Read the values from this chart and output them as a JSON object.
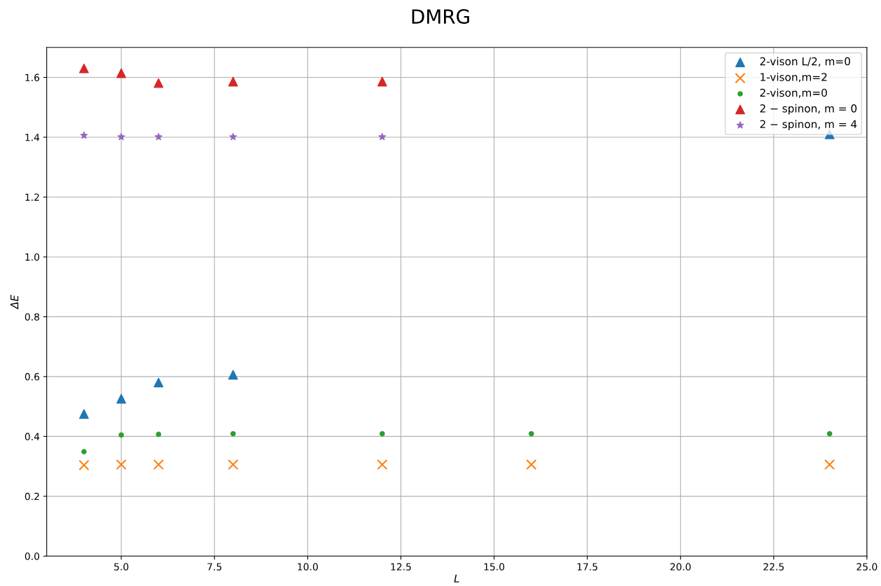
{
  "chart_data": {
    "type": "scatter",
    "title": "DMRG",
    "xlabel": "L",
    "ylabel": "ΔE",
    "xlim": [
      3.0,
      25.0
    ],
    "ylim": [
      0.0,
      1.7
    ],
    "xticks": [
      {
        "value": 5,
        "label": "5.0"
      },
      {
        "value": 7.5,
        "label": "7.5"
      },
      {
        "value": 10,
        "label": "10.0"
      },
      {
        "value": 12.5,
        "label": "12.5"
      },
      {
        "value": 15,
        "label": "15.0"
      },
      {
        "value": 17.5,
        "label": "17.5"
      },
      {
        "value": 20,
        "label": "20.0"
      },
      {
        "value": 22.5,
        "label": "22.5"
      },
      {
        "value": 25,
        "label": "25.0"
      }
    ],
    "yticks": [
      {
        "value": 0,
        "label": "0.0"
      },
      {
        "value": 0.2,
        "label": "0.2"
      },
      {
        "value": 0.4,
        "label": "0.4"
      },
      {
        "value": 0.6,
        "label": "0.6"
      },
      {
        "value": 0.8,
        "label": "0.8"
      },
      {
        "value": 1.0,
        "label": "1.0"
      },
      {
        "value": 1.2,
        "label": "1.2"
      },
      {
        "value": 1.4,
        "label": "1.4"
      },
      {
        "value": 1.6,
        "label": "1.6"
      }
    ],
    "grid": true,
    "legend": "top right",
    "series": [
      {
        "name": "2-vison L/2, m=0",
        "color": "#1f77b4",
        "marker": "triangle",
        "x": [
          4,
          5,
          6,
          8,
          24
        ],
        "values": [
          0.475,
          0.526,
          0.58,
          0.606,
          1.41
        ]
      },
      {
        "name": "1-vison,m=2",
        "color": "#ff7f0e",
        "marker": "cross",
        "x": [
          4,
          5,
          6,
          8,
          12,
          16,
          24
        ],
        "values": [
          0.304,
          0.306,
          0.306,
          0.306,
          0.306,
          0.306,
          0.306
        ]
      },
      {
        "name": "2-vison,m=0",
        "color": "#2ca02c",
        "marker": "circle",
        "x": [
          4,
          5,
          6,
          8,
          12,
          16,
          24
        ],
        "values": [
          0.349,
          0.405,
          0.407,
          0.409,
          0.409,
          0.409,
          0.409
        ]
      },
      {
        "name": "2 − spinon, m = 0",
        "color": "#d62728",
        "marker": "triangle",
        "x": [
          4,
          5,
          6,
          8,
          12
        ],
        "values": [
          1.63,
          1.614,
          1.581,
          1.586,
          1.586
        ]
      },
      {
        "name": "2 − spinon, m = 4",
        "color": "#9467bd",
        "marker": "star",
        "x": [
          4,
          5,
          6,
          8,
          12
        ],
        "values": [
          1.406,
          1.401,
          1.401,
          1.401,
          1.401
        ]
      }
    ]
  }
}
